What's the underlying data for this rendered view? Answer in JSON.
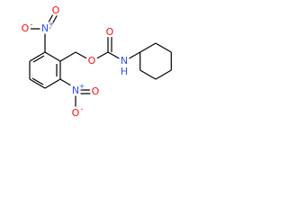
{
  "atoms": [
    {
      "label": "O"
    },
    {
      "label": "N",
      "charge": "+"
    },
    {
      "label": "O",
      "charge": "-"
    },
    {
      "label": "N",
      "charge": "+"
    },
    {
      "label": "O",
      "charge": "-"
    },
    {
      "label": "O"
    },
    {
      "label": "O"
    },
    {
      "label": "O"
    },
    {
      "label": "N",
      "hydrogen": "H"
    }
  ]
}
